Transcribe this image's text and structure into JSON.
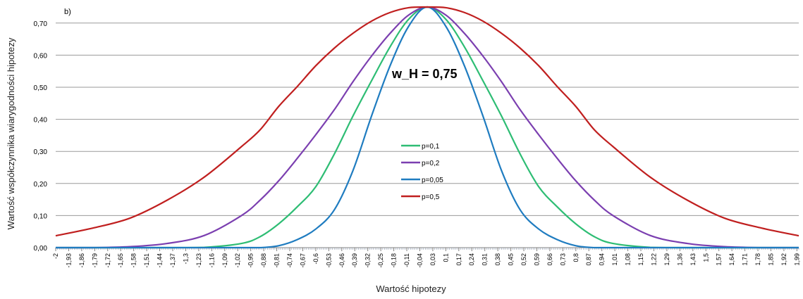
{
  "chart_data": {
    "type": "line",
    "panel_label": "b)",
    "annotation": "w_H = 0,75",
    "xlabel": "Wartość hipotezy",
    "ylabel": "Wartość współczynnika wiarygodności hipotezy",
    "ylim": [
      0,
      0.75
    ],
    "xlim": [
      -2,
      2
    ],
    "y_ticks": [
      "0,00",
      "0,10",
      "0,20",
      "0,30",
      "0,40",
      "0,50",
      "0,60",
      "0,70"
    ],
    "x_tick_labels": [
      "-2",
      "-1,93",
      "-1,86",
      "-1,79",
      "-1,72",
      "-1,65",
      "-1,58",
      "-1,51",
      "-1,44",
      "-1,37",
      "-1,3",
      "-1,23",
      "-1,16",
      "-1,09",
      "-1,02",
      "-0,95",
      "-0,88",
      "-0,81",
      "-0,74",
      "-0,67",
      "-0,6",
      "-0,53",
      "-0,46",
      "-0,39",
      "-0,32",
      "-0,25",
      "-0,18",
      "-0,11",
      "-0,04",
      "0,03",
      "0,1",
      "0,17",
      "0,24",
      "0,31",
      "0,38",
      "0,45",
      "0,52",
      "0,59",
      "0,66",
      "0,73",
      "0,8",
      "0,87",
      "0,94",
      "1,01",
      "1,08",
      "1,15",
      "1,22",
      "1,29",
      "1,36",
      "1,43",
      "1,5",
      "1,57",
      "1,64",
      "1,71",
      "1,78",
      "1,85",
      "1,92",
      "1,99"
    ],
    "x": [
      -2.0,
      -1.8,
      -1.6,
      -1.4,
      -1.2,
      -1.0,
      -0.9,
      -0.8,
      -0.7,
      -0.6,
      -0.5,
      -0.4,
      -0.3,
      -0.2,
      -0.1,
      0.0,
      0.1,
      0.2,
      0.3,
      0.4,
      0.5,
      0.6,
      0.7,
      0.8,
      0.9,
      1.0,
      1.2,
      1.4,
      1.6,
      1.8,
      2.0
    ],
    "series": [
      {
        "name": "p=0,1",
        "color": "#2ebd74",
        "values": [
          0.0,
          0.0,
          0.0,
          0.0,
          0.001,
          0.013,
          0.034,
          0.074,
          0.127,
          0.19,
          0.292,
          0.41,
          0.52,
          0.626,
          0.712,
          0.75,
          0.712,
          0.626,
          0.52,
          0.41,
          0.292,
          0.19,
          0.127,
          0.074,
          0.034,
          0.013,
          0.001,
          0.0,
          0.0,
          0.0,
          0.0
        ]
      },
      {
        "name": "p=0,2",
        "color": "#7b3fb0",
        "values": [
          0.0,
          0.0,
          0.003,
          0.013,
          0.038,
          0.1,
          0.148,
          0.208,
          0.278,
          0.352,
          0.43,
          0.517,
          0.597,
          0.668,
          0.725,
          0.75,
          0.725,
          0.668,
          0.597,
          0.517,
          0.43,
          0.352,
          0.278,
          0.208,
          0.148,
          0.1,
          0.038,
          0.013,
          0.003,
          0.0,
          0.0
        ]
      },
      {
        "name": "p=0,05",
        "color": "#1f7cc0",
        "values": [
          0.0,
          0.0,
          0.0,
          0.0,
          0.0,
          0.0,
          0.0,
          0.006,
          0.025,
          0.058,
          0.118,
          0.24,
          0.41,
          0.567,
          0.69,
          0.75,
          0.69,
          0.567,
          0.41,
          0.24,
          0.118,
          0.058,
          0.025,
          0.006,
          0.0,
          0.0,
          0.0,
          0.0,
          0.0,
          0.0,
          0.0
        ]
      },
      {
        "name": "p=0,5",
        "color": "#c01f1f",
        "values": [
          0.037,
          0.061,
          0.092,
          0.148,
          0.22,
          0.315,
          0.367,
          0.44,
          0.502,
          0.567,
          0.622,
          0.668,
          0.706,
          0.733,
          0.748,
          0.75,
          0.748,
          0.733,
          0.706,
          0.668,
          0.622,
          0.567,
          0.502,
          0.44,
          0.367,
          0.315,
          0.22,
          0.148,
          0.092,
          0.061,
          0.037
        ]
      }
    ],
    "grid": true,
    "legend_position": "center"
  }
}
